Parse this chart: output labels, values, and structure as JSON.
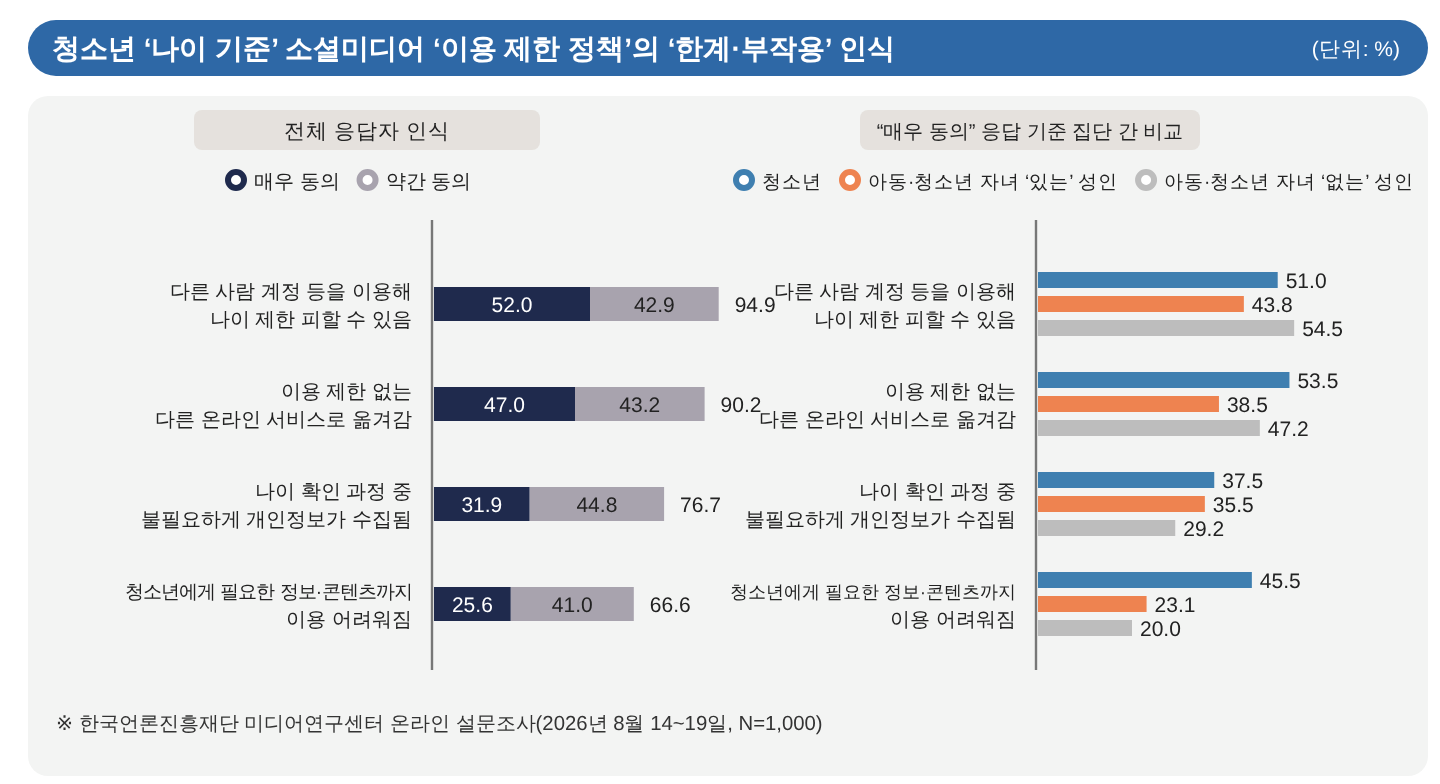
{
  "chart_data": [
    {
      "type": "bar",
      "orientation": "horizontal",
      "stacked": true,
      "title": "청소년 ‘나이 기준’ 소셜미디어 ‘이용 제한 정책’의 ‘한계·부작용’ 인식",
      "subtitle": "전체 응답자 인식",
      "categories": [
        "다른 사람 계정 등을 이용해\n나이 제한 피할 수 있음",
        "이용 제한 없는\n다른 온라인 서비스로 옮겨감",
        "나이 확인 과정 중\n불필요하게 개인정보가 수집됨",
        "청소년에게 필요한 정보·콘텐츠까지\n이용 어려워짐"
      ],
      "series": [
        {
          "name": "매우 동의",
          "color": "#1f2a4d",
          "values": [
            52.0,
            47.0,
            31.9,
            25.6
          ],
          "value_labels": [
            "52.0",
            "47.0",
            "31.9",
            "25.6"
          ]
        },
        {
          "name": "약간 동의",
          "color": "#a8a3ae",
          "values": [
            42.9,
            43.2,
            44.8,
            41.0
          ],
          "value_labels": [
            "42.9",
            "43.2",
            "44.8",
            "41.0"
          ]
        }
      ],
      "totals": [
        "94.9",
        "90.2",
        "76.7",
        "66.6"
      ],
      "data_labels": true,
      "legend": "top",
      "annotations": [
        "(단위: %)",
        "※ 한국언론진흥재단 미디어연구센터 온라인 설문조사(2026년 8월 14~19일, N=1,000)"
      ]
    },
    {
      "type": "bar",
      "orientation": "horizontal",
      "title": "“매우 동의” 응답 기준 집단 간 비교",
      "categories": [
        "다른 사람 계정 등을 이용해\n나이 제한 피할 수 있음",
        "이용 제한 없는\n다른 온라인 서비스로 옮겨감",
        "나이 확인 과정 중\n불필요하게 개인정보가 수집됨",
        "청소년에게 필요한 정보·콘텐츠까지\n이용 어려워짐"
      ],
      "series": [
        {
          "name": "청소년",
          "color": "#3f7fb0",
          "values": [
            51.0,
            53.5,
            37.5,
            45.5
          ],
          "value_labels": [
            "51.0",
            "53.5",
            "37.5",
            "45.5"
          ]
        },
        {
          "name": "아동·청소년 자녀 ‘있는’ 성인",
          "color": "#ee8350",
          "values": [
            43.8,
            38.5,
            35.5,
            23.1
          ],
          "value_labels": [
            "43.8",
            "38.5",
            "35.5",
            "23.1"
          ]
        },
        {
          "name": "아동·청소년 자녀 ‘없는’ 성인",
          "color": "#bdbdbd",
          "values": [
            54.5,
            47.2,
            29.2,
            20.0
          ],
          "value_labels": [
            "54.5",
            "47.2",
            "29.2",
            "20.0"
          ]
        }
      ],
      "data_labels": true,
      "legend": "top"
    }
  ]
}
